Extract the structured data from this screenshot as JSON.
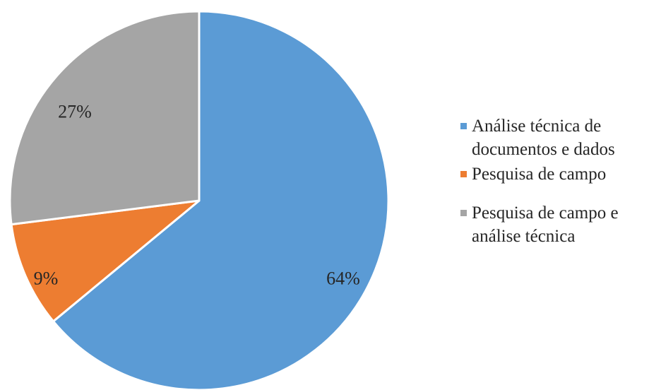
{
  "chart_data": {
    "type": "pie",
    "slices": [
      {
        "name": "Análise técnica de documentos e dados",
        "value": 64,
        "label": "64%",
        "color": "#5B9BD5"
      },
      {
        "name": "Pesquisa de campo",
        "value": 9,
        "label": "9%",
        "color": "#ED7D31"
      },
      {
        "name": "Pesquisa de campo e análise técnica",
        "value": 27,
        "label": "27%",
        "color": "#A5A5A5"
      }
    ],
    "start_angle_deg": 0,
    "direction": "clockwise",
    "legend_position": "right",
    "legend": [
      {
        "label": "Análise técnica de documentos e dados",
        "color": "#5B9BD5"
      },
      {
        "label": "Pesquisa de campo",
        "color": "#ED7D31"
      },
      {
        "label": "Pesquisa de campo e análise técnica",
        "color": "#A5A5A5"
      }
    ]
  }
}
